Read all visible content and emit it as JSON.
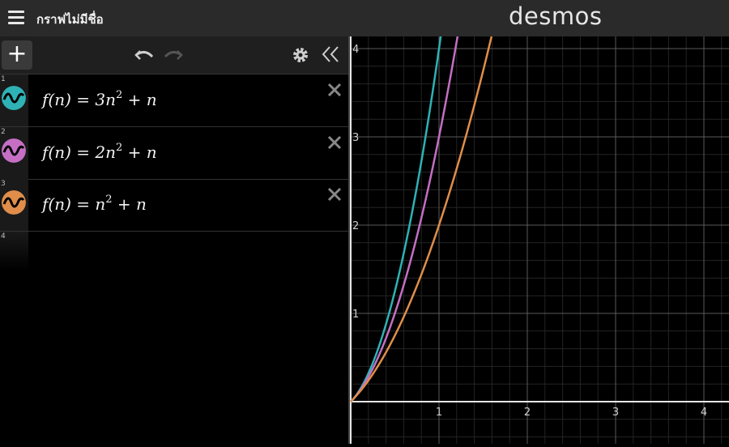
{
  "header": {
    "graph_title": "กราฟไม่มีชื่อ",
    "logo": "desmos",
    "menu_icon": "hamburger-menu-icon"
  },
  "toolbar": {
    "add_label": "+",
    "undo_icon": "undo-icon",
    "redo_icon": "redo-icon",
    "settings_icon": "gear-icon",
    "collapse_icon": "double-chevron-left-icon"
  },
  "expressions": [
    {
      "index": "1",
      "lhs": "f(n)",
      "coef": "3",
      "var": "n",
      "exp": "2",
      "tail": "+ n",
      "color": "#2fb2b5"
    },
    {
      "index": "2",
      "lhs": "f(n)",
      "coef": "2",
      "var": "n",
      "exp": "2",
      "tail": "+ n",
      "color": "#c46fc4"
    },
    {
      "index": "3",
      "lhs": "f(n)",
      "coef": "",
      "var": "n",
      "exp": "2",
      "tail": "+ n",
      "color": "#e08e4a"
    },
    {
      "index": "4"
    }
  ],
  "chart_data": {
    "type": "line",
    "x_ticks": [
      "1",
      "2",
      "3",
      "4"
    ],
    "y_ticks": [
      "1",
      "2",
      "3",
      "4"
    ],
    "xlim": [
      0,
      4.2
    ],
    "ylim": [
      -0.5,
      4.1
    ],
    "grid": true,
    "series": [
      {
        "formula": "3n^2+n",
        "a": 3,
        "color": "#2fb2b5"
      },
      {
        "formula": "2n^2+n",
        "a": 2,
        "color": "#c46fc4"
      },
      {
        "formula": "n^2+n",
        "a": 1,
        "color": "#e08e4a"
      }
    ]
  }
}
